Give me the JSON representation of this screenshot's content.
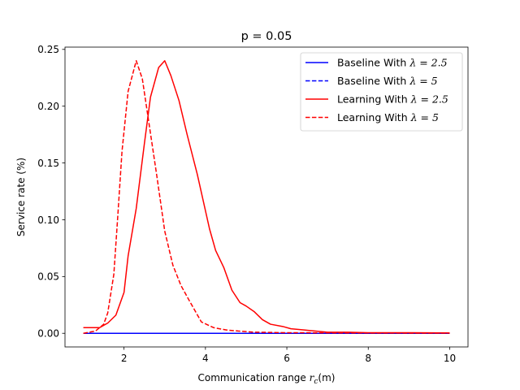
{
  "chart_data": {
    "type": "line",
    "title": "p = 0.05",
    "xlabel_main": "Communication range ",
    "xlabel_var": "r",
    "xlabel_sub": "c",
    "xlabel_unit": "(m)",
    "ylabel": "Service rate (%)",
    "xlim": [
      0.55,
      10.45
    ],
    "ylim": [
      -0.012,
      0.252
    ],
    "xticks": [
      2,
      4,
      6,
      8,
      10
    ],
    "xtick_labels": [
      "2",
      "4",
      "6",
      "8",
      "10"
    ],
    "yticks": [
      0.0,
      0.05,
      0.1,
      0.15,
      0.2,
      0.25
    ],
    "ytick_labels": [
      "0.00",
      "0.05",
      "0.10",
      "0.15",
      "0.20",
      "0.25"
    ],
    "grid": false,
    "legend_position": "top-right",
    "series": [
      {
        "name": "Baseline With λ = 2.5",
        "legend_prefix": "Baseline With ",
        "legend_math": "λ = 2.5",
        "color": "#0000ff",
        "dash": "solid",
        "x": [
          1.0,
          10.0
        ],
        "y": [
          0.0,
          0.0
        ]
      },
      {
        "name": "Baseline With λ = 5",
        "legend_prefix": "Baseline With ",
        "legend_math": "λ = 5",
        "color": "#0000ff",
        "dash": "dashed",
        "x": [
          1.0,
          10.0
        ],
        "y": [
          0.0,
          0.0
        ]
      },
      {
        "name": "Learning With λ = 2.5",
        "legend_prefix": "Learning With ",
        "legend_math": "λ = 2.5",
        "color": "#ff0000",
        "dash": "solid",
        "x": [
          1.0,
          1.2,
          1.4,
          1.6,
          1.8,
          2.0,
          2.1,
          2.3,
          2.5,
          2.65,
          2.85,
          3.0,
          3.15,
          3.35,
          3.55,
          3.8,
          4.1,
          4.25,
          4.45,
          4.65,
          4.85,
          5.0,
          5.2,
          5.4,
          5.6,
          5.9,
          6.1,
          6.4,
          7.0,
          7.5,
          8.0,
          8.5,
          9.0,
          10.0
        ],
        "y": [
          0.005,
          0.005,
          0.005,
          0.009,
          0.016,
          0.036,
          0.068,
          0.11,
          0.167,
          0.208,
          0.234,
          0.24,
          0.227,
          0.205,
          0.175,
          0.14,
          0.092,
          0.073,
          0.058,
          0.038,
          0.027,
          0.024,
          0.019,
          0.012,
          0.008,
          0.006,
          0.004,
          0.003,
          0.001,
          0.001,
          0.0005,
          0.0005,
          0.0005,
          0.0003
        ]
      },
      {
        "name": "Learning With λ = 5",
        "legend_prefix": "Learning With ",
        "legend_math": "λ = 5",
        "color": "#ff0000",
        "dash": "dashed",
        "x": [
          1.0,
          1.3,
          1.5,
          1.6,
          1.75,
          1.85,
          1.95,
          2.1,
          2.3,
          2.45,
          2.6,
          2.8,
          3.0,
          3.2,
          3.4,
          3.6,
          3.9,
          4.2,
          4.5,
          4.8,
          5.2,
          5.6,
          6.0,
          6.5,
          7.0,
          8.0,
          9.0,
          10.0
        ],
        "y": [
          0.0,
          0.002,
          0.008,
          0.018,
          0.052,
          0.105,
          0.16,
          0.213,
          0.24,
          0.224,
          0.188,
          0.14,
          0.09,
          0.06,
          0.042,
          0.029,
          0.01,
          0.005,
          0.003,
          0.002,
          0.001,
          0.0008,
          0.0005,
          0.0005,
          0.0004,
          0.0003,
          0.0002,
          0.0002
        ]
      }
    ]
  }
}
